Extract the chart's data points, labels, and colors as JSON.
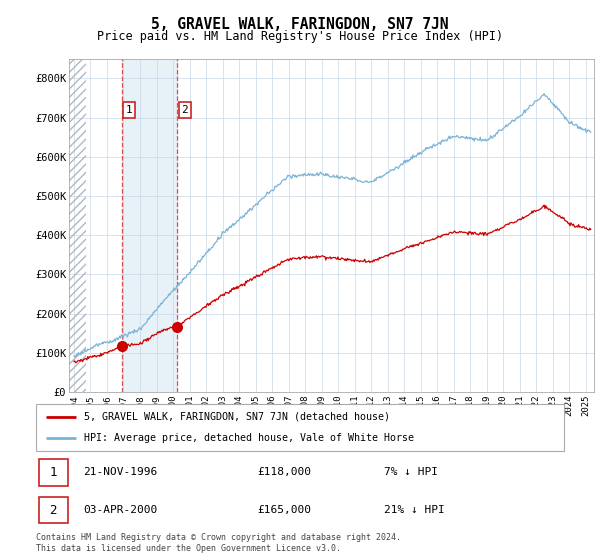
{
  "title": "5, GRAVEL WALK, FARINGDON, SN7 7JN",
  "subtitle": "Price paid vs. HM Land Registry's House Price Index (HPI)",
  "hpi_color": "#7ab3d4",
  "price_color": "#cc0000",
  "marker_color": "#cc0000",
  "grid_color": "#c8d8e8",
  "ylim": [
    0,
    850000
  ],
  "yticks": [
    0,
    100000,
    200000,
    300000,
    400000,
    500000,
    600000,
    700000,
    800000
  ],
  "ytick_labels": [
    "£0",
    "£100K",
    "£200K",
    "£300K",
    "£400K",
    "£500K",
    "£600K",
    "£700K",
    "£800K"
  ],
  "xlim_start": 1993.7,
  "xlim_end": 2025.5,
  "sale1_x": 1996.896,
  "sale1_y": 118000,
  "sale1_label": "1",
  "sale2_x": 2000.257,
  "sale2_y": 165000,
  "sale2_label": "2",
  "legend_line1": "5, GRAVEL WALK, FARINGDON, SN7 7JN (detached house)",
  "legend_line2": "HPI: Average price, detached house, Vale of White Horse",
  "info1_num": "1",
  "info1_date": "21-NOV-1996",
  "info1_price": "£118,000",
  "info1_hpi": "7% ↓ HPI",
  "info2_num": "2",
  "info2_date": "03-APR-2000",
  "info2_price": "£165,000",
  "info2_hpi": "21% ↓ HPI",
  "footer": "Contains HM Land Registry data © Crown copyright and database right 2024.\nThis data is licensed under the Open Government Licence v3.0."
}
